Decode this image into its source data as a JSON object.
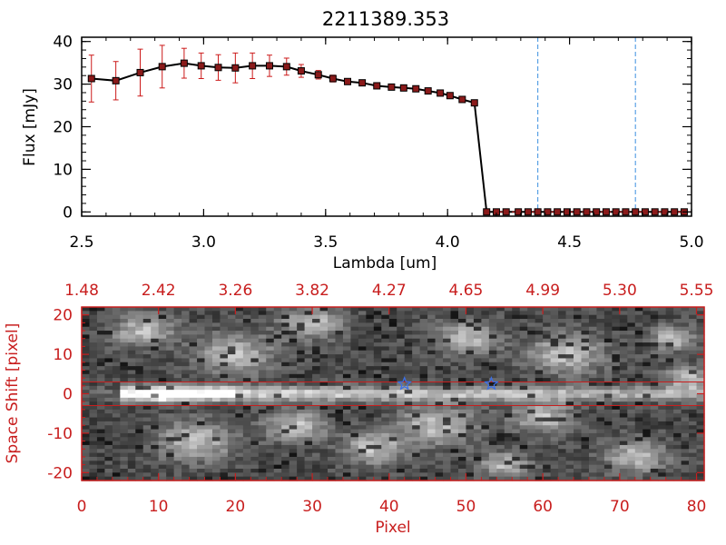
{
  "colors": {
    "axis_black": "#000000",
    "error_red": "#cc1a1a",
    "marker_fill": "#8a1a1a",
    "spectrum_line": "#000000",
    "dashed_blue": "#3b8fe0",
    "bottom_axis_red": "#c81e1e",
    "star_blue": "#3a6fe8"
  },
  "chart_data": [
    {
      "type": "line",
      "title": "2211389.353",
      "xlabel": "Lambda [um]",
      "ylabel": "Flux [mJy]",
      "xlim": [
        2.5,
        5.0
      ],
      "ylim": [
        -1,
        41
      ],
      "x_ticks": [
        2.5,
        3.0,
        3.5,
        4.0,
        4.5,
        5.0
      ],
      "x_tick_labels": [
        "2.5",
        "3.0",
        "3.5",
        "4.0",
        "4.5",
        "5.0"
      ],
      "y_ticks": [
        0,
        10,
        20,
        30,
        40
      ],
      "y_tick_labels": [
        "0",
        "10",
        "20",
        "30",
        "40"
      ],
      "grid": false,
      "dashed_vertical_lines_x": [
        4.37,
        4.77
      ],
      "series": [
        {
          "x": [
            2.54,
            2.64,
            2.74,
            2.83,
            2.92,
            2.99,
            3.06,
            3.13,
            3.2,
            3.27,
            3.34,
            3.4,
            3.47,
            3.53,
            3.59,
            3.65,
            3.71,
            3.77,
            3.82,
            3.87,
            3.92,
            3.97,
            4.01,
            4.06,
            4.11,
            4.16,
            4.2,
            4.24,
            4.29,
            4.33,
            4.37,
            4.41,
            4.45,
            4.49,
            4.53,
            4.57,
            4.61,
            4.65,
            4.69,
            4.73,
            4.77,
            4.81,
            4.85,
            4.89,
            4.93,
            4.97
          ],
          "y": [
            31.3,
            30.8,
            32.7,
            34.1,
            34.9,
            34.3,
            33.9,
            33.8,
            34.3,
            34.3,
            34.1,
            33.1,
            32.2,
            31.3,
            30.6,
            30.3,
            29.6,
            29.3,
            29.1,
            28.9,
            28.4,
            27.9,
            27.3,
            26.4,
            25.6,
            0,
            0,
            0,
            0,
            0,
            0,
            0,
            0,
            0,
            0,
            0,
            0,
            0,
            0,
            0,
            0,
            0,
            0,
            0,
            0,
            0
          ],
          "yerr": [
            5.5,
            4.5,
            5.5,
            5.0,
            3.5,
            3.0,
            3.0,
            3.5,
            3.0,
            2.5,
            2.0,
            1.5,
            1.0,
            0.8,
            0.7,
            0.6,
            0.6,
            0.5,
            0.5,
            0.5,
            0.5,
            0.5,
            0.6,
            0.6,
            0.6,
            0,
            0,
            0,
            0,
            0,
            0,
            0,
            0,
            0,
            0,
            0,
            0,
            0,
            0,
            0,
            0,
            0,
            0,
            0,
            0,
            0
          ]
        }
      ]
    },
    {
      "type": "heatmap",
      "xlabel": "Pixel",
      "ylabel": "Space Shift [pixel]",
      "xlim": [
        0,
        81
      ],
      "ylim": [
        -22,
        22
      ],
      "x_ticks": [
        0,
        10,
        20,
        30,
        40,
        50,
        60,
        70,
        80
      ],
      "x_tick_labels": [
        "0",
        "10",
        "20",
        "30",
        "40",
        "50",
        "60",
        "70",
        "80"
      ],
      "y_ticks": [
        -20,
        -10,
        0,
        10,
        20
      ],
      "y_tick_labels": [
        "-20",
        "-10",
        "0",
        "10",
        "20"
      ],
      "top_axis_tick_labels": [
        "1.48",
        "2.42",
        "3.26",
        "3.82",
        "4.27",
        "4.65",
        "4.99",
        "5.30",
        "5.55"
      ],
      "horizontal_lines_y": [
        3,
        -3
      ],
      "star_markers": [
        {
          "x": 42.0,
          "y": 2.5
        },
        {
          "x": 53.3,
          "y": 2.5
        }
      ],
      "colormap": "grayscale"
    }
  ]
}
